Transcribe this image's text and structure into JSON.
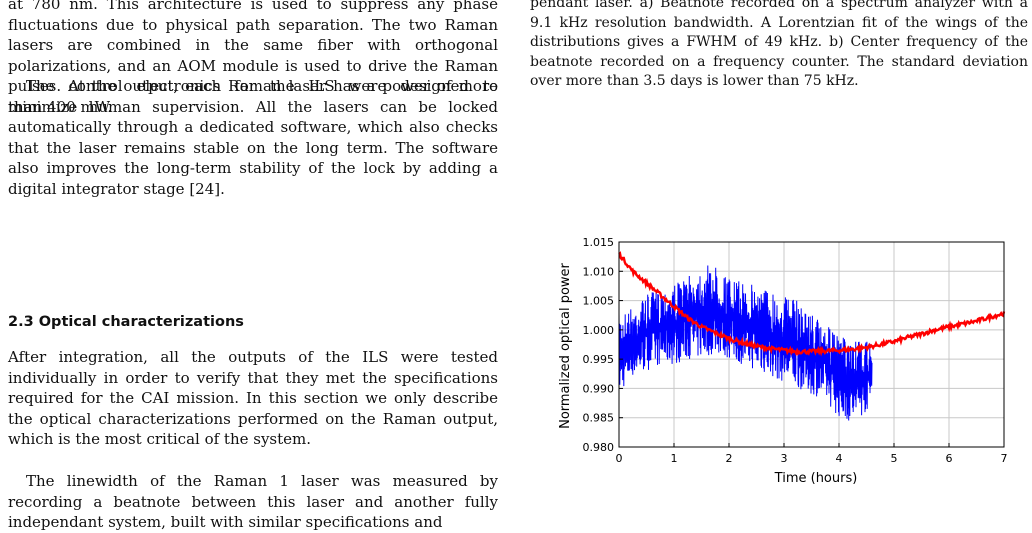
{
  "left_column": {
    "paragraph1": "at 780 nm. This architecture is used to suppress any phase fluctuations due to physical path separation. The two Raman lasers are combined in the same fiber with orthogonal polarizations, and an AOM module is used to drive the Raman pulses. At the output, each Raman laser has a power of more than 400 mW.",
    "paragraph2": "The control electronics for the ILS were designed to minimize human supervision. All the lasers can be locked automatically through a dedicated software, which also checks that the laser remains stable on the long term. The software also improves the long-term stability of the lock by adding a digital integrator stage [24].",
    "section_heading": "2.3 Optical characterizations",
    "paragraph3": "After integration, all the outputs of the ILS were tested individually in order to verify that they met the specifications required for the CAI mission. In this section we only describe the optical characterizations performed on the Raman output, which is the most critical of the system.",
    "paragraph4": "The linewidth of the Raman 1 laser was measured by recording a beatnote between this laser and another fully independant system, built with similar specifications and"
  },
  "right_column": {
    "caption": "pendant laser. a) Beatnote recorded on a spectrum analyzer with a 9.1 kHz resolution bandwidth. A Lorentzian fit of the wings of the distributions gives a FWHM of 49 kHz. b) Center frequency of the beatnote recorded on a frequency counter. The standard deviation over more than 3.5 days is lower than 75 kHz."
  },
  "chart_data": {
    "type": "line",
    "xlabel": "Time (hours)",
    "ylabel": "Normalized optical power",
    "xlim": [
      0,
      7
    ],
    "ylim": [
      0.98,
      1.015
    ],
    "x_ticks": [
      "0",
      "1",
      "2",
      "3",
      "4",
      "5",
      "6",
      "7"
    ],
    "y_ticks": [
      "0.980",
      "0.985",
      "0.990",
      "0.995",
      "1.000",
      "1.005",
      "1.010",
      "1.015"
    ],
    "grid": true,
    "series": [
      {
        "color": "#0000ff",
        "x": [
          0,
          0.25,
          0.5,
          0.75,
          1.0,
          1.25,
          1.5,
          1.75,
          2.0,
          2.25,
          2.5,
          2.75,
          3.0,
          3.25,
          3.5,
          3.75,
          4.0,
          4.25,
          4.5,
          4.6
        ],
        "y_min": [
          0.989,
          0.992,
          0.993,
          0.994,
          0.994,
          0.995,
          0.995,
          0.996,
          0.995,
          0.994,
          0.993,
          0.992,
          0.991,
          0.99,
          0.989,
          0.988,
          0.985,
          0.984,
          0.986,
          0.988
        ],
        "y_max": [
          1.003,
          1.004,
          1.006,
          1.007,
          1.008,
          1.009,
          1.011,
          1.011,
          1.009,
          1.008,
          1.008,
          1.007,
          1.006,
          1.005,
          1.003,
          1.001,
          0.999,
          0.998,
          0.998,
          0.998
        ]
      },
      {
        "color": "#ff0000",
        "x": [
          0,
          0.25,
          0.5,
          0.75,
          1.0,
          1.25,
          1.5,
          1.75,
          2.0,
          2.25,
          2.5,
          2.75,
          3.0,
          3.25,
          3.5,
          3.75,
          4.0,
          4.25,
          4.5,
          4.75,
          5.0,
          5.25,
          5.5,
          5.75,
          6.0,
          6.25,
          6.5,
          6.75,
          7.0
        ],
        "y": [
          1.013,
          1.01,
          1.008,
          1.006,
          1.004,
          1.002,
          1.0005,
          0.9995,
          0.9985,
          0.9978,
          0.9972,
          0.9968,
          0.9965,
          0.9963,
          0.9963,
          0.9964,
          0.9965,
          0.9967,
          0.997,
          0.9975,
          0.998,
          0.9987,
          0.9993,
          1.0,
          1.0005,
          1.001,
          1.0015,
          1.0022,
          1.0028
        ]
      }
    ]
  }
}
